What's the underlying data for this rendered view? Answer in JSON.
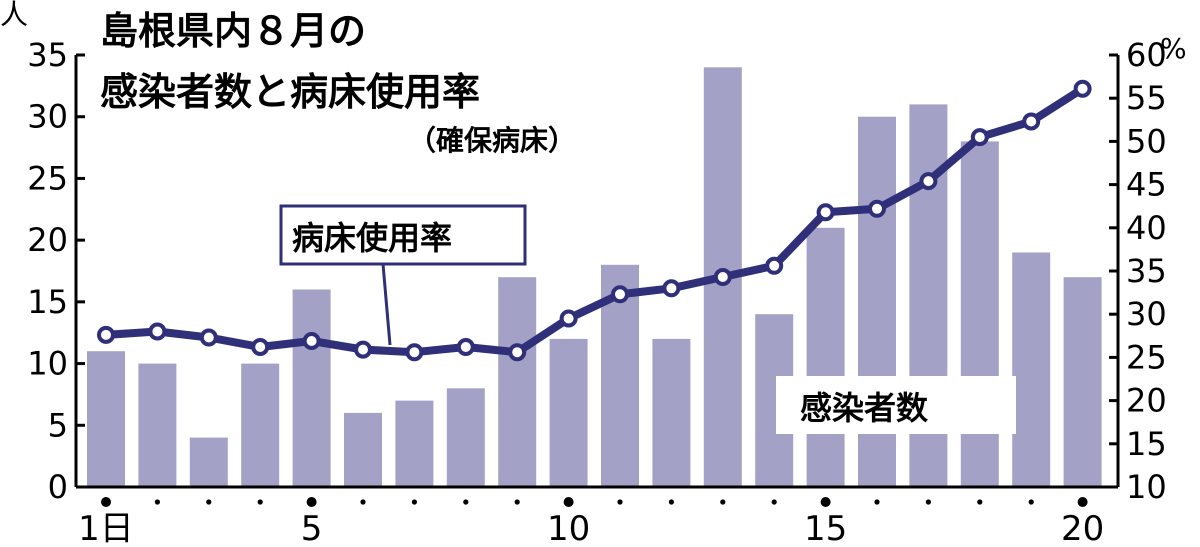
{
  "chart_data": {
    "type": "bar+line",
    "title_line1": "島根県内８月の",
    "title_line2": "感染者数と病床使用率",
    "subtitle": "（確保病床）",
    "y_left_unit": "人",
    "y_right_unit": "%",
    "y_left_range": [
      0,
      35
    ],
    "y_left_ticks": [
      "0",
      "5",
      "10",
      "15",
      "20",
      "25",
      "30",
      "35"
    ],
    "y_right_range": [
      10,
      60
    ],
    "y_right_ticks": [
      "10",
      "15",
      "20",
      "25",
      "30",
      "35",
      "40",
      "45",
      "50",
      "55",
      "60"
    ],
    "x_days": [
      1,
      2,
      3,
      4,
      5,
      6,
      7,
      8,
      9,
      10,
      11,
      12,
      13,
      14,
      15,
      16,
      17,
      18,
      19,
      20
    ],
    "x_tick_labels": [
      {
        "day": 1,
        "label": "1日"
      },
      {
        "day": 5,
        "label": "5"
      },
      {
        "day": 10,
        "label": "10"
      },
      {
        "day": 15,
        "label": "15"
      },
      {
        "day": 20,
        "label": "20"
      }
    ],
    "series": [
      {
        "name": "感染者数",
        "type": "bar",
        "axis": "left",
        "color": "#a3a2c6",
        "values": [
          11,
          10,
          4,
          10,
          16,
          6,
          7,
          8,
          17,
          12,
          18,
          12,
          34,
          14,
          21,
          30,
          31,
          28,
          19,
          17
        ]
      },
      {
        "name": "病床使用率",
        "type": "line",
        "axis": "right",
        "color": "#2f2f7a",
        "values": [
          27.6,
          28.0,
          27.3,
          26.2,
          26.9,
          25.9,
          25.6,
          26.2,
          25.6,
          29.5,
          32.3,
          33.0,
          34.3,
          35.6,
          41.8,
          42.2,
          45.4,
          50.5,
          52.3,
          56.1
        ]
      }
    ],
    "colors": {
      "bar": "#a3a2c6",
      "line": "#2f2f7a",
      "axis": "#000000",
      "box_border": "#2f2f7a"
    }
  }
}
